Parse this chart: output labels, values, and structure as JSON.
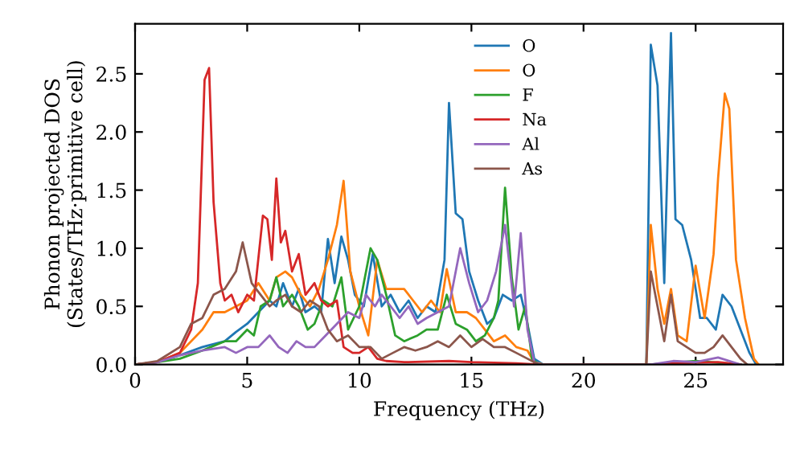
{
  "chart_data": {
    "type": "line",
    "xlabel": "Frequency (THz)",
    "ylabel": "Phonon projected DOS\n(States/THz·primitive cell)",
    "xlim": [
      0,
      28.9
    ],
    "ylim": [
      0,
      2.93
    ],
    "xticks": [
      0,
      5,
      10,
      15,
      20,
      25
    ],
    "yticks": [
      {
        "value": 0,
        "label": "0.0"
      },
      {
        "value": 0.5,
        "label": "0.5"
      },
      {
        "value": 1,
        "label": "1.0"
      },
      {
        "value": 1.5,
        "label": "1.5"
      },
      {
        "value": 2,
        "label": "2.0"
      },
      {
        "value": 2.5,
        "label": "2.5"
      }
    ],
    "legend": "top center",
    "grid": false,
    "series": [
      {
        "name": "O",
        "color": "#1f77b4",
        "x": [
          0,
          1,
          2,
          3,
          4,
          4.5,
          5,
          5.5,
          6,
          6.3,
          6.6,
          7,
          7.3,
          7.6,
          8,
          8.3,
          8.6,
          8.9,
          9.2,
          9.5,
          9.8,
          10.2,
          10.6,
          11,
          11.4,
          11.8,
          12.2,
          12.6,
          13,
          13.4,
          13.8,
          14,
          14.3,
          14.6,
          14.9,
          15.3,
          15.7,
          16,
          16.4,
          16.8,
          17.2,
          17.5,
          17.8,
          18.2,
          22.8,
          23,
          23.3,
          23.6,
          23.9,
          24.1,
          24.4,
          24.8,
          25.2,
          25.5,
          25.9,
          26.2,
          26.6,
          27,
          27.4,
          27.7
        ],
        "values": [
          0,
          0.02,
          0.08,
          0.15,
          0.2,
          0.28,
          0.35,
          0.45,
          0.55,
          0.5,
          0.7,
          0.5,
          0.65,
          0.45,
          0.5,
          0.45,
          1.08,
          0.7,
          1.1,
          0.9,
          0.6,
          0.5,
          0.95,
          0.5,
          0.6,
          0.45,
          0.55,
          0.4,
          0.5,
          0.45,
          0.9,
          2.25,
          1.3,
          1.25,
          0.8,
          0.55,
          0.35,
          0.4,
          0.6,
          0.55,
          0.6,
          0.35,
          0.05,
          0,
          0,
          2.75,
          2.4,
          0.7,
          2.85,
          1.25,
          1.2,
          0.9,
          0.4,
          0.4,
          0.3,
          0.6,
          0.5,
          0.3,
          0.1,
          0
        ]
      },
      {
        "name": "O",
        "color": "#ff7f0e",
        "x": [
          0,
          1,
          2,
          3,
          3.5,
          4,
          4.5,
          5,
          5.5,
          6,
          6.3,
          6.7,
          7,
          7.4,
          7.8,
          8.2,
          8.6,
          9,
          9.3,
          9.6,
          10,
          10.4,
          10.8,
          11.2,
          11.6,
          12,
          12.4,
          12.8,
          13.2,
          13.6,
          13.9,
          14.3,
          14.8,
          15.2,
          15.6,
          16,
          16.5,
          17,
          17.5,
          17.8,
          18.2,
          22.8,
          23,
          23.3,
          23.6,
          23.9,
          24.2,
          24.6,
          25,
          25.4,
          25.8,
          26,
          26.3,
          26.5,
          26.8,
          27.2,
          27.6,
          27.8
        ],
        "values": [
          0,
          0.02,
          0.1,
          0.3,
          0.45,
          0.45,
          0.5,
          0.55,
          0.7,
          0.55,
          0.75,
          0.8,
          0.75,
          0.6,
          0.5,
          0.65,
          0.9,
          1.2,
          1.58,
          0.8,
          0.5,
          0.25,
          0.9,
          0.65,
          0.65,
          0.65,
          0.55,
          0.45,
          0.55,
          0.45,
          0.82,
          0.45,
          0.45,
          0.4,
          0.3,
          0.2,
          0.25,
          0.15,
          0.12,
          0.02,
          0,
          0,
          1.2,
          0.65,
          0.35,
          0.65,
          0.25,
          0.2,
          0.85,
          0.4,
          0.95,
          1.6,
          2.33,
          2.2,
          0.9,
          0.4,
          0.05,
          0
        ]
      },
      {
        "name": "F",
        "color": "#2ca02c",
        "x": [
          0,
          1,
          2,
          3,
          4,
          4.5,
          5,
          5.3,
          5.6,
          6,
          6.3,
          6.6,
          7,
          7.3,
          7.7,
          8,
          8.4,
          8.8,
          9.2,
          9.5,
          10,
          10.5,
          10.8,
          11.2,
          11.6,
          12,
          12.6,
          13,
          13.5,
          13.9,
          14.3,
          14.8,
          15.2,
          15.6,
          16,
          16.2,
          16.5,
          16.8,
          17.1,
          17.4,
          17.7,
          18,
          23,
          25,
          27
        ],
        "values": [
          0,
          0.02,
          0.05,
          0.12,
          0.2,
          0.2,
          0.3,
          0.25,
          0.5,
          0.55,
          0.75,
          0.5,
          0.6,
          0.5,
          0.3,
          0.35,
          0.55,
          0.5,
          0.75,
          0.3,
          0.5,
          1.0,
          0.9,
          0.6,
          0.25,
          0.2,
          0.25,
          0.3,
          0.3,
          0.6,
          0.35,
          0.3,
          0.2,
          0.25,
          0.4,
          0.55,
          1.52,
          0.75,
          0.3,
          0.5,
          0.05,
          0,
          0,
          0.03,
          0
        ]
      },
      {
        "name": "Na",
        "color": "#d62728",
        "x": [
          0,
          1,
          2,
          2.5,
          2.8,
          3.1,
          3.3,
          3.5,
          3.8,
          4,
          4.3,
          4.6,
          5,
          5.3,
          5.7,
          5.9,
          6.1,
          6.3,
          6.5,
          6.7,
          7,
          7.3,
          7.6,
          8,
          8.3,
          8.6,
          9,
          9.3,
          9.7,
          10,
          10.4,
          10.8,
          11.2,
          12,
          14,
          15,
          17,
          18,
          23,
          24,
          26,
          27
        ],
        "values": [
          0,
          0.02,
          0.1,
          0.3,
          0.7,
          2.45,
          2.55,
          1.4,
          0.7,
          0.55,
          0.6,
          0.45,
          0.6,
          0.55,
          1.28,
          1.25,
          0.9,
          1.6,
          1.05,
          1.15,
          0.8,
          0.95,
          0.6,
          0.7,
          0.55,
          0.5,
          0.55,
          0.15,
          0.1,
          0.1,
          0.15,
          0.05,
          0.03,
          0.02,
          0.03,
          0.02,
          0.01,
          0,
          0,
          0.01,
          0.02,
          0
        ]
      },
      {
        "name": "Al",
        "color": "#9467bd",
        "x": [
          0,
          1,
          2,
          3,
          4,
          4.5,
          5,
          5.5,
          6,
          6.4,
          6.8,
          7.2,
          7.6,
          8,
          8.5,
          9,
          9.5,
          10,
          10.3,
          10.7,
          11,
          11.4,
          11.8,
          12.2,
          12.6,
          13,
          13.5,
          14,
          14.5,
          14.9,
          15.3,
          15.7,
          16.1,
          16.5,
          16.9,
          17.2,
          17.5,
          17.8,
          18.1,
          23,
          24,
          25,
          26,
          27
        ],
        "values": [
          0,
          0.02,
          0.08,
          0.12,
          0.15,
          0.1,
          0.15,
          0.15,
          0.25,
          0.15,
          0.1,
          0.2,
          0.15,
          0.15,
          0.25,
          0.35,
          0.45,
          0.4,
          0.6,
          0.5,
          0.6,
          0.5,
          0.4,
          0.5,
          0.35,
          0.4,
          0.45,
          0.5,
          1.0,
          0.7,
          0.45,
          0.55,
          0.8,
          1.2,
          0.5,
          1.13,
          0.3,
          0.02,
          0,
          0,
          0.03,
          0.02,
          0.06,
          0
        ]
      },
      {
        "name": "As",
        "color": "#8c564b",
        "x": [
          0,
          1,
          2,
          2.5,
          3,
          3.5,
          4,
          4.5,
          4.8,
          5.2,
          5.6,
          6,
          6.3,
          6.7,
          7,
          7.4,
          7.8,
          8.2,
          8.6,
          9,
          9.5,
          10,
          10.5,
          11,
          11.5,
          12,
          12.5,
          13,
          13.5,
          14,
          14.5,
          15,
          15.5,
          16,
          16.5,
          17,
          17.5,
          18,
          22.8,
          23,
          23.3,
          23.6,
          23.9,
          24.2,
          24.6,
          25,
          25.4,
          25.8,
          26.2,
          26.6,
          27,
          27.3
        ],
        "values": [
          0,
          0.03,
          0.15,
          0.35,
          0.4,
          0.6,
          0.65,
          0.8,
          1.05,
          0.7,
          0.6,
          0.5,
          0.55,
          0.6,
          0.5,
          0.45,
          0.55,
          0.5,
          0.3,
          0.2,
          0.25,
          0.15,
          0.15,
          0.05,
          0.1,
          0.15,
          0.12,
          0.15,
          0.2,
          0.15,
          0.25,
          0.15,
          0.22,
          0.15,
          0.15,
          0.1,
          0.05,
          0,
          0,
          0.8,
          0.5,
          0.2,
          0.6,
          0.2,
          0.15,
          0.1,
          0.1,
          0.15,
          0.25,
          0.15,
          0.05,
          0
        ]
      }
    ]
  }
}
